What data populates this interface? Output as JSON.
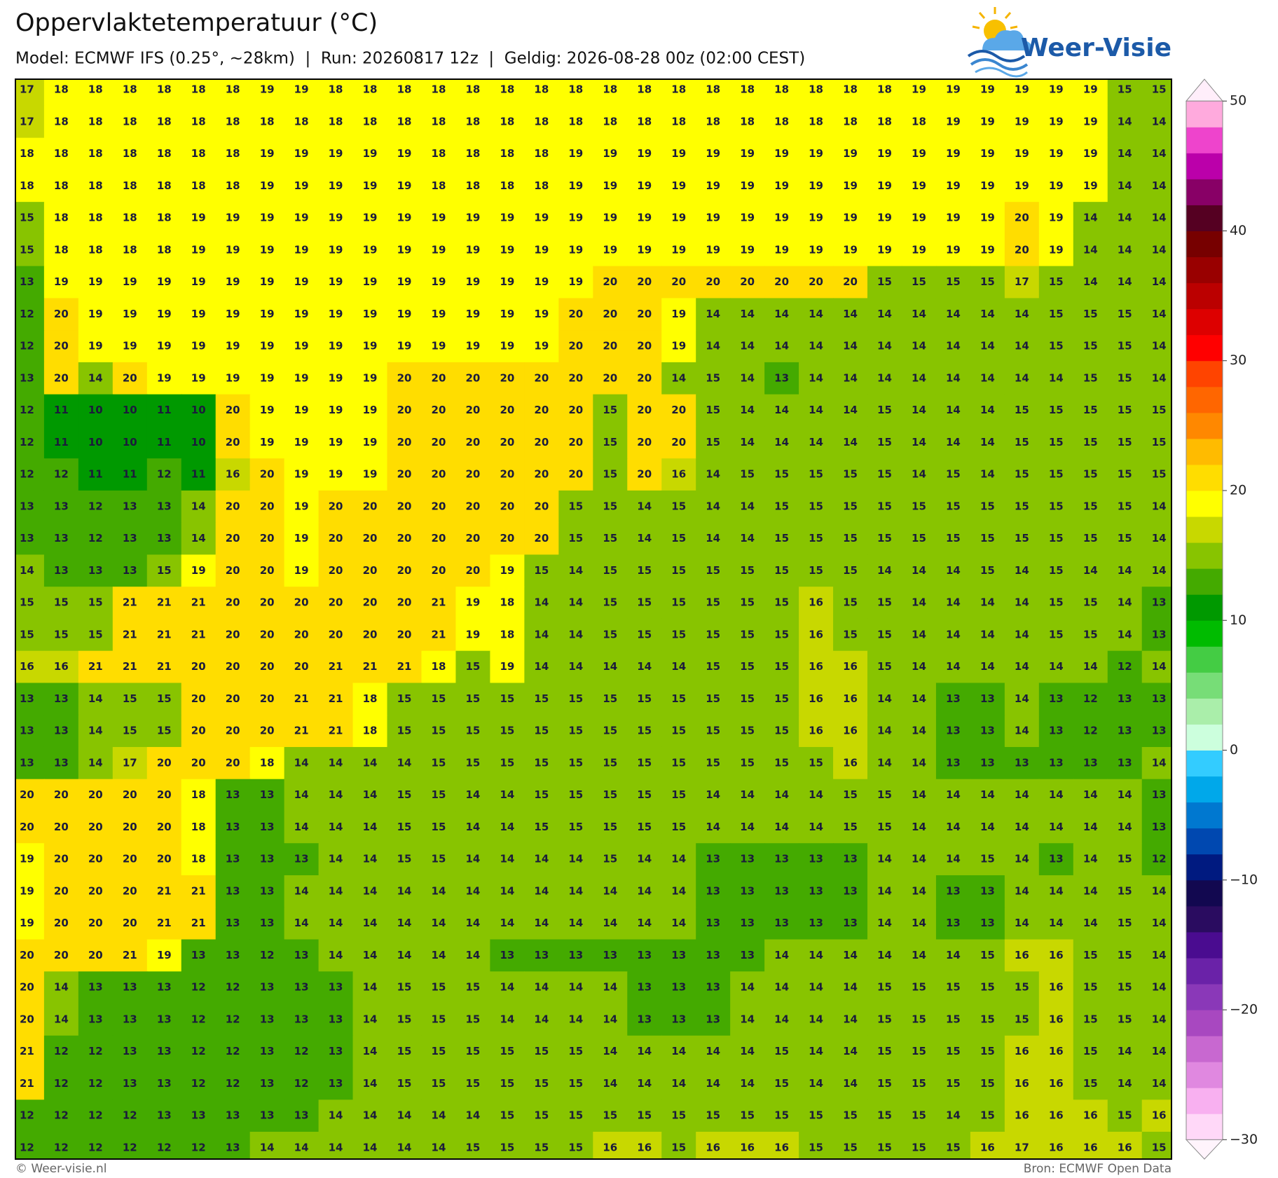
{
  "header": {
    "title": "Oppervlaktetemperatuur (°C)",
    "subtitle": "Model: ECMWF IFS (0.25°, ~28km)  |  Run: 20260817 12z  |  Geldig: 2026-08-28 00z (02:00 CEST)",
    "logo": "Weer-Visie"
  },
  "grid": [
    [
      17,
      18,
      18,
      18,
      18,
      18,
      18,
      19,
      19,
      18,
      18,
      18,
      18,
      18,
      18,
      18,
      18,
      18,
      18,
      18,
      18,
      18,
      18,
      18,
      18,
      18,
      19,
      19,
      19,
      19,
      19,
      19,
      15,
      15
    ],
    [
      17,
      18,
      18,
      18,
      18,
      18,
      18,
      18,
      18,
      18,
      18,
      18,
      18,
      18,
      18,
      18,
      18,
      18,
      18,
      18,
      18,
      18,
      18,
      18,
      18,
      18,
      18,
      19,
      19,
      19,
      19,
      19,
      14,
      14
    ],
    [
      18,
      18,
      18,
      18,
      18,
      18,
      18,
      19,
      19,
      19,
      19,
      19,
      18,
      18,
      18,
      18,
      19,
      19,
      19,
      19,
      19,
      19,
      19,
      19,
      19,
      19,
      19,
      19,
      19,
      19,
      19,
      19,
      14,
      14
    ],
    [
      18,
      18,
      18,
      18,
      18,
      18,
      18,
      19,
      19,
      19,
      19,
      19,
      18,
      18,
      18,
      18,
      19,
      19,
      19,
      19,
      19,
      19,
      19,
      19,
      19,
      19,
      19,
      19,
      19,
      19,
      19,
      19,
      14,
      14
    ],
    [
      15,
      18,
      18,
      18,
      18,
      19,
      19,
      19,
      19,
      19,
      19,
      19,
      19,
      19,
      19,
      19,
      19,
      19,
      19,
      19,
      19,
      19,
      19,
      19,
      19,
      19,
      19,
      19,
      19,
      20,
      19,
      14,
      14,
      14
    ],
    [
      15,
      18,
      18,
      18,
      18,
      19,
      19,
      19,
      19,
      19,
      19,
      19,
      19,
      19,
      19,
      19,
      19,
      19,
      19,
      19,
      19,
      19,
      19,
      19,
      19,
      19,
      19,
      19,
      19,
      20,
      19,
      14,
      14,
      14
    ],
    [
      13,
      19,
      19,
      19,
      19,
      19,
      19,
      19,
      19,
      19,
      19,
      19,
      19,
      19,
      19,
      19,
      19,
      20,
      20,
      20,
      20,
      20,
      20,
      20,
      20,
      15,
      15,
      15,
      15,
      17,
      15,
      14,
      14,
      14
    ],
    [
      12,
      20,
      19,
      19,
      19,
      19,
      19,
      19,
      19,
      19,
      19,
      19,
      19,
      19,
      19,
      19,
      20,
      20,
      20,
      19,
      14,
      14,
      14,
      14,
      14,
      14,
      14,
      14,
      14,
      14,
      15,
      15,
      15,
      14
    ],
    [
      12,
      20,
      19,
      19,
      19,
      19,
      19,
      19,
      19,
      19,
      19,
      19,
      19,
      19,
      19,
      19,
      20,
      20,
      20,
      19,
      14,
      14,
      14,
      14,
      14,
      14,
      14,
      14,
      14,
      14,
      15,
      15,
      15,
      14
    ],
    [
      13,
      20,
      14,
      20,
      19,
      19,
      19,
      19,
      19,
      19,
      19,
      20,
      20,
      20,
      20,
      20,
      20,
      20,
      20,
      14,
      15,
      14,
      13,
      14,
      14,
      14,
      14,
      14,
      14,
      14,
      14,
      15,
      15,
      14
    ],
    [
      12,
      11,
      10,
      10,
      11,
      10,
      20,
      19,
      19,
      19,
      19,
      20,
      20,
      20,
      20,
      20,
      20,
      15,
      20,
      20,
      15,
      14,
      14,
      14,
      14,
      15,
      14,
      14,
      14,
      15,
      15,
      15,
      15,
      15
    ],
    [
      12,
      11,
      10,
      10,
      11,
      10,
      20,
      19,
      19,
      19,
      19,
      20,
      20,
      20,
      20,
      20,
      20,
      15,
      20,
      20,
      15,
      14,
      14,
      14,
      14,
      15,
      14,
      14,
      14,
      15,
      15,
      15,
      15,
      15
    ],
    [
      12,
      12,
      11,
      11,
      12,
      11,
      16,
      20,
      19,
      19,
      19,
      20,
      20,
      20,
      20,
      20,
      20,
      15,
      20,
      16,
      14,
      15,
      15,
      15,
      15,
      15,
      14,
      15,
      14,
      15,
      15,
      15,
      15,
      15
    ],
    [
      13,
      13,
      12,
      13,
      13,
      14,
      20,
      20,
      19,
      20,
      20,
      20,
      20,
      20,
      20,
      20,
      15,
      15,
      14,
      15,
      14,
      14,
      15,
      15,
      15,
      15,
      15,
      15,
      15,
      15,
      15,
      15,
      15,
      14
    ],
    [
      13,
      13,
      12,
      13,
      13,
      14,
      20,
      20,
      19,
      20,
      20,
      20,
      20,
      20,
      20,
      20,
      15,
      15,
      14,
      15,
      14,
      14,
      15,
      15,
      15,
      15,
      15,
      15,
      15,
      15,
      15,
      15,
      15,
      14
    ],
    [
      14,
      13,
      13,
      13,
      15,
      19,
      20,
      20,
      19,
      20,
      20,
      20,
      20,
      20,
      19,
      15,
      14,
      15,
      15,
      15,
      15,
      15,
      15,
      15,
      15,
      14,
      14,
      14,
      15,
      14,
      15,
      14,
      14,
      14
    ],
    [
      15,
      15,
      15,
      21,
      21,
      21,
      20,
      20,
      20,
      20,
      20,
      20,
      21,
      19,
      18,
      14,
      14,
      15,
      15,
      15,
      15,
      15,
      15,
      16,
      15,
      15,
      14,
      14,
      14,
      14,
      15,
      15,
      14,
      13
    ],
    [
      15,
      15,
      15,
      21,
      21,
      21,
      20,
      20,
      20,
      20,
      20,
      20,
      21,
      19,
      18,
      14,
      14,
      15,
      15,
      15,
      15,
      15,
      15,
      16,
      15,
      15,
      14,
      14,
      14,
      14,
      15,
      15,
      14,
      13
    ],
    [
      16,
      16,
      21,
      21,
      21,
      20,
      20,
      20,
      20,
      21,
      21,
      21,
      18,
      15,
      19,
      14,
      14,
      14,
      14,
      14,
      15,
      15,
      15,
      16,
      16,
      15,
      14,
      14,
      14,
      14,
      14,
      14,
      12,
      14
    ],
    [
      13,
      13,
      14,
      15,
      15,
      20,
      20,
      20,
      21,
      21,
      18,
      15,
      15,
      15,
      15,
      15,
      15,
      15,
      15,
      15,
      15,
      15,
      15,
      16,
      16,
      14,
      14,
      13,
      13,
      14,
      13,
      12,
      13,
      13
    ],
    [
      13,
      13,
      14,
      15,
      15,
      20,
      20,
      20,
      21,
      21,
      18,
      15,
      15,
      15,
      15,
      15,
      15,
      15,
      15,
      15,
      15,
      15,
      15,
      16,
      16,
      14,
      14,
      13,
      13,
      14,
      13,
      12,
      13,
      13
    ],
    [
      13,
      13,
      14,
      17,
      20,
      20,
      20,
      18,
      14,
      14,
      14,
      14,
      15,
      15,
      15,
      15,
      15,
      15,
      15,
      15,
      15,
      15,
      15,
      15,
      16,
      14,
      14,
      13,
      13,
      13,
      13,
      13,
      13,
      14
    ],
    [
      20,
      20,
      20,
      20,
      20,
      18,
      13,
      13,
      14,
      14,
      14,
      15,
      15,
      14,
      14,
      15,
      15,
      15,
      15,
      15,
      14,
      14,
      14,
      14,
      15,
      15,
      14,
      14,
      14,
      14,
      14,
      14,
      14,
      13
    ],
    [
      20,
      20,
      20,
      20,
      20,
      18,
      13,
      13,
      14,
      14,
      14,
      15,
      15,
      14,
      14,
      15,
      15,
      15,
      15,
      15,
      14,
      14,
      14,
      14,
      15,
      15,
      14,
      14,
      14,
      14,
      14,
      14,
      14,
      13
    ],
    [
      19,
      20,
      20,
      20,
      20,
      18,
      13,
      13,
      13,
      14,
      14,
      15,
      15,
      14,
      14,
      14,
      14,
      15,
      14,
      14,
      13,
      13,
      13,
      13,
      13,
      14,
      14,
      14,
      15,
      14,
      13,
      14,
      15,
      12
    ],
    [
      19,
      20,
      20,
      20,
      21,
      21,
      13,
      13,
      14,
      14,
      14,
      14,
      14,
      14,
      14,
      14,
      14,
      14,
      14,
      14,
      13,
      13,
      13,
      13,
      13,
      14,
      14,
      13,
      13,
      14,
      14,
      14,
      15,
      14
    ],
    [
      19,
      20,
      20,
      20,
      21,
      21,
      13,
      13,
      14,
      14,
      14,
      14,
      14,
      14,
      14,
      14,
      14,
      14,
      14,
      14,
      13,
      13,
      13,
      13,
      13,
      14,
      14,
      13,
      13,
      14,
      14,
      14,
      15,
      14
    ],
    [
      20,
      20,
      20,
      21,
      19,
      13,
      13,
      12,
      13,
      14,
      14,
      14,
      14,
      14,
      13,
      13,
      13,
      13,
      13,
      13,
      13,
      13,
      14,
      14,
      14,
      14,
      14,
      14,
      15,
      16,
      16,
      15,
      15,
      14
    ],
    [
      20,
      14,
      13,
      13,
      13,
      12,
      12,
      13,
      13,
      13,
      14,
      15,
      15,
      15,
      14,
      14,
      14,
      14,
      13,
      13,
      13,
      14,
      14,
      14,
      14,
      15,
      15,
      15,
      15,
      15,
      16,
      15,
      15,
      14
    ],
    [
      20,
      14,
      13,
      13,
      13,
      12,
      12,
      13,
      13,
      13,
      14,
      15,
      15,
      15,
      14,
      14,
      14,
      14,
      13,
      13,
      13,
      14,
      14,
      14,
      14,
      15,
      15,
      15,
      15,
      15,
      16,
      15,
      15,
      14
    ],
    [
      21,
      12,
      12,
      13,
      13,
      12,
      12,
      13,
      12,
      13,
      14,
      15,
      15,
      15,
      15,
      15,
      15,
      14,
      14,
      14,
      14,
      14,
      15,
      14,
      14,
      15,
      15,
      15,
      15,
      16,
      16,
      15,
      14,
      14
    ],
    [
      21,
      12,
      12,
      13,
      13,
      12,
      12,
      13,
      12,
      13,
      14,
      15,
      15,
      15,
      15,
      15,
      15,
      14,
      14,
      14,
      14,
      14,
      15,
      14,
      14,
      15,
      15,
      15,
      15,
      16,
      16,
      15,
      14,
      14
    ],
    [
      12,
      12,
      12,
      12,
      13,
      13,
      13,
      13,
      13,
      14,
      14,
      14,
      14,
      14,
      15,
      15,
      15,
      15,
      15,
      15,
      15,
      15,
      15,
      15,
      15,
      15,
      15,
      14,
      15,
      16,
      16,
      16,
      15,
      16
    ],
    [
      12,
      12,
      12,
      12,
      12,
      12,
      13,
      14,
      14,
      14,
      14,
      14,
      14,
      15,
      15,
      15,
      15,
      16,
      16,
      15,
      16,
      16,
      16,
      15,
      15,
      15,
      15,
      15,
      16,
      17,
      16,
      16,
      16,
      15
    ]
  ],
  "colorbar": {
    "ticks": [
      50,
      40,
      30,
      20,
      10,
      0,
      {
        "value": -10,
        "label": "−10"
      },
      {
        "value": -20,
        "label": "−20"
      },
      {
        "value": -30,
        "label": "−30"
      }
    ],
    "colors": [
      "#ffd8f8",
      "#f8b0f0",
      "#e088e0",
      "#c868d0",
      "#a848c0",
      "#8a38b8",
      "#6a22a8",
      "#4a0c90",
      "#2a0c60",
      "#120850",
      "#001a80",
      "#0048b0",
      "#0078d0",
      "#00a8ea",
      "#33ccff",
      "#ccffdd",
      "#aaeeaa",
      "#77dd77",
      "#44cc44",
      "#00bb00",
      "#009900",
      "#44aa00",
      "#88c400",
      "#c8d800",
      "#ffff00",
      "#ffdd00",
      "#ffbb00",
      "#ff8800",
      "#ff6600",
      "#ff4400",
      "#ff0000",
      "#dd0000",
      "#bb0000",
      "#990000",
      "#770000",
      "#550022",
      "#880066",
      "#bb00aa",
      "#ee44cc",
      "#ffaadd"
    ]
  },
  "footer": {
    "left": "© Weer-visie.nl",
    "right": "Bron: ECMWF Open Data"
  }
}
